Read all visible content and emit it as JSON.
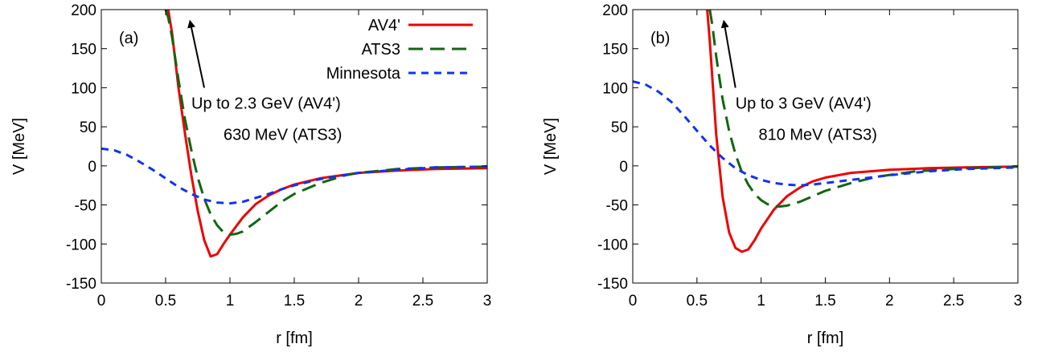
{
  "chart_data": [
    {
      "type": "line",
      "panel_label": "(a)",
      "xlabel": "r [fm]",
      "ylabel": "V [MeV]",
      "xlim": [
        0,
        3
      ],
      "ylim": [
        -150,
        200
      ],
      "xticks": [
        0,
        0.5,
        1,
        1.5,
        2,
        2.5,
        3
      ],
      "xtick_labels": [
        "0",
        "0.5",
        "1",
        "1.5",
        "2",
        "2.5",
        "3"
      ],
      "yticks": [
        -150,
        -100,
        -50,
        0,
        50,
        100,
        150,
        200
      ],
      "ytick_labels": [
        "-150",
        "-100",
        "-50",
        "0",
        "50",
        "100",
        "150",
        "200"
      ],
      "legend": {
        "placement": "top-right"
      },
      "series": [
        {
          "name": "AV4'",
          "color": "#ee0000",
          "dash": "solid",
          "x": [
            0.52,
            0.55,
            0.6,
            0.65,
            0.7,
            0.75,
            0.8,
            0.85,
            0.9,
            0.95,
            1.0,
            1.1,
            1.2,
            1.3,
            1.4,
            1.5,
            1.7,
            2.0,
            2.3,
            2.6,
            3.0
          ],
          "y": [
            200,
            170,
            100,
            42,
            -12,
            -58,
            -95,
            -116,
            -113,
            -100,
            -88,
            -66,
            -49,
            -38,
            -30,
            -24,
            -16,
            -9,
            -6,
            -4,
            -3
          ]
        },
        {
          "name": "ATS3",
          "color": "#116611",
          "dash": "long",
          "x": [
            0.5,
            0.52,
            0.55,
            0.6,
            0.65,
            0.7,
            0.75,
            0.8,
            0.85,
            0.9,
            0.95,
            1.0,
            1.05,
            1.1,
            1.2,
            1.3,
            1.4,
            1.5,
            1.7,
            1.9,
            2.0,
            2.3,
            2.6,
            3.0
          ],
          "y": [
            200,
            190,
            165,
            110,
            60,
            20,
            -15,
            -42,
            -62,
            -76,
            -85,
            -88,
            -87,
            -84,
            -72,
            -59,
            -46,
            -36,
            -22,
            -12,
            -9,
            -4,
            -2,
            -1
          ]
        },
        {
          "name": "Minnesota",
          "color": "#1133ee",
          "dash": "short",
          "x": [
            0,
            0.1,
            0.2,
            0.3,
            0.4,
            0.5,
            0.6,
            0.7,
            0.8,
            0.9,
            1.0,
            1.1,
            1.2,
            1.3,
            1.4,
            1.5,
            1.7,
            2.0,
            2.3,
            2.6,
            3.0
          ],
          "y": [
            22,
            20,
            14,
            5,
            -5,
            -16,
            -27,
            -36,
            -43,
            -47,
            -48,
            -46,
            -41,
            -36,
            -30,
            -25,
            -17,
            -9,
            -5,
            -2,
            -1
          ]
        }
      ],
      "annotations": [
        {
          "text": "Up to 2.3 GeV (AV4')",
          "x": 0.7,
          "y": 73
        },
        {
          "text": "630 MeV (ATS3)",
          "x": 0.95,
          "y": 33
        }
      ],
      "arrow": {
        "from": [
          0.8,
          100
        ],
        "to": [
          0.69,
          185
        ]
      }
    },
    {
      "type": "line",
      "panel_label": "(b)",
      "xlabel": "r [fm]",
      "ylabel": "V [MeV]",
      "xlim": [
        0,
        3
      ],
      "ylim": [
        -150,
        200
      ],
      "xticks": [
        0,
        0.5,
        1,
        1.5,
        2,
        2.5,
        3
      ],
      "xtick_labels": [
        "0",
        "0.5",
        "1",
        "1.5",
        "2",
        "2.5",
        "3"
      ],
      "yticks": [
        -150,
        -100,
        -50,
        0,
        50,
        100,
        150,
        200
      ],
      "ytick_labels": [
        "-150",
        "-100",
        "-50",
        "0",
        "50",
        "100",
        "150",
        "200"
      ],
      "series": [
        {
          "name": "AV4'",
          "color": "#ee0000",
          "dash": "solid",
          "x": [
            0.58,
            0.6,
            0.65,
            0.7,
            0.75,
            0.8,
            0.85,
            0.9,
            0.95,
            1.0,
            1.1,
            1.2,
            1.3,
            1.4,
            1.5,
            1.7,
            2.0,
            2.3,
            2.6,
            3.0
          ],
          "y": [
            200,
            160,
            40,
            -40,
            -85,
            -105,
            -110,
            -107,
            -95,
            -80,
            -56,
            -39,
            -28,
            -20,
            -15,
            -9,
            -5,
            -3,
            -2,
            -1
          ]
        },
        {
          "name": "ATS3",
          "color": "#116611",
          "dash": "long",
          "x": [
            0.6,
            0.62,
            0.65,
            0.7,
            0.75,
            0.8,
            0.85,
            0.9,
            0.95,
            1.0,
            1.05,
            1.1,
            1.15,
            1.2,
            1.3,
            1.4,
            1.5,
            1.7,
            1.9,
            2.2,
            2.6,
            3.0
          ],
          "y": [
            200,
            180,
            140,
            85,
            45,
            15,
            -8,
            -24,
            -36,
            -44,
            -49,
            -52,
            -52,
            -51,
            -46,
            -39,
            -32,
            -22,
            -14,
            -7,
            -3,
            -1
          ]
        },
        {
          "name": "Minnesota",
          "color": "#1133ee",
          "dash": "short",
          "x": [
            0,
            0.1,
            0.2,
            0.3,
            0.4,
            0.5,
            0.6,
            0.7,
            0.8,
            0.9,
            1.0,
            1.1,
            1.2,
            1.3,
            1.4,
            1.5,
            1.7,
            2.0,
            2.3,
            2.6,
            3.0
          ],
          "y": [
            108,
            104,
            95,
            82,
            64,
            45,
            26,
            10,
            -3,
            -12,
            -18,
            -22,
            -24,
            -25,
            -24,
            -22,
            -18,
            -12,
            -7,
            -4,
            -2
          ]
        }
      ],
      "annotations": [
        {
          "text": "Up to 3 GeV (AV4')",
          "x": 0.8,
          "y": 73
        },
        {
          "text": "810 MeV (ATS3)",
          "x": 0.98,
          "y": 33
        }
      ],
      "arrow": {
        "from": [
          0.8,
          100
        ],
        "to": [
          0.71,
          185
        ]
      }
    }
  ]
}
